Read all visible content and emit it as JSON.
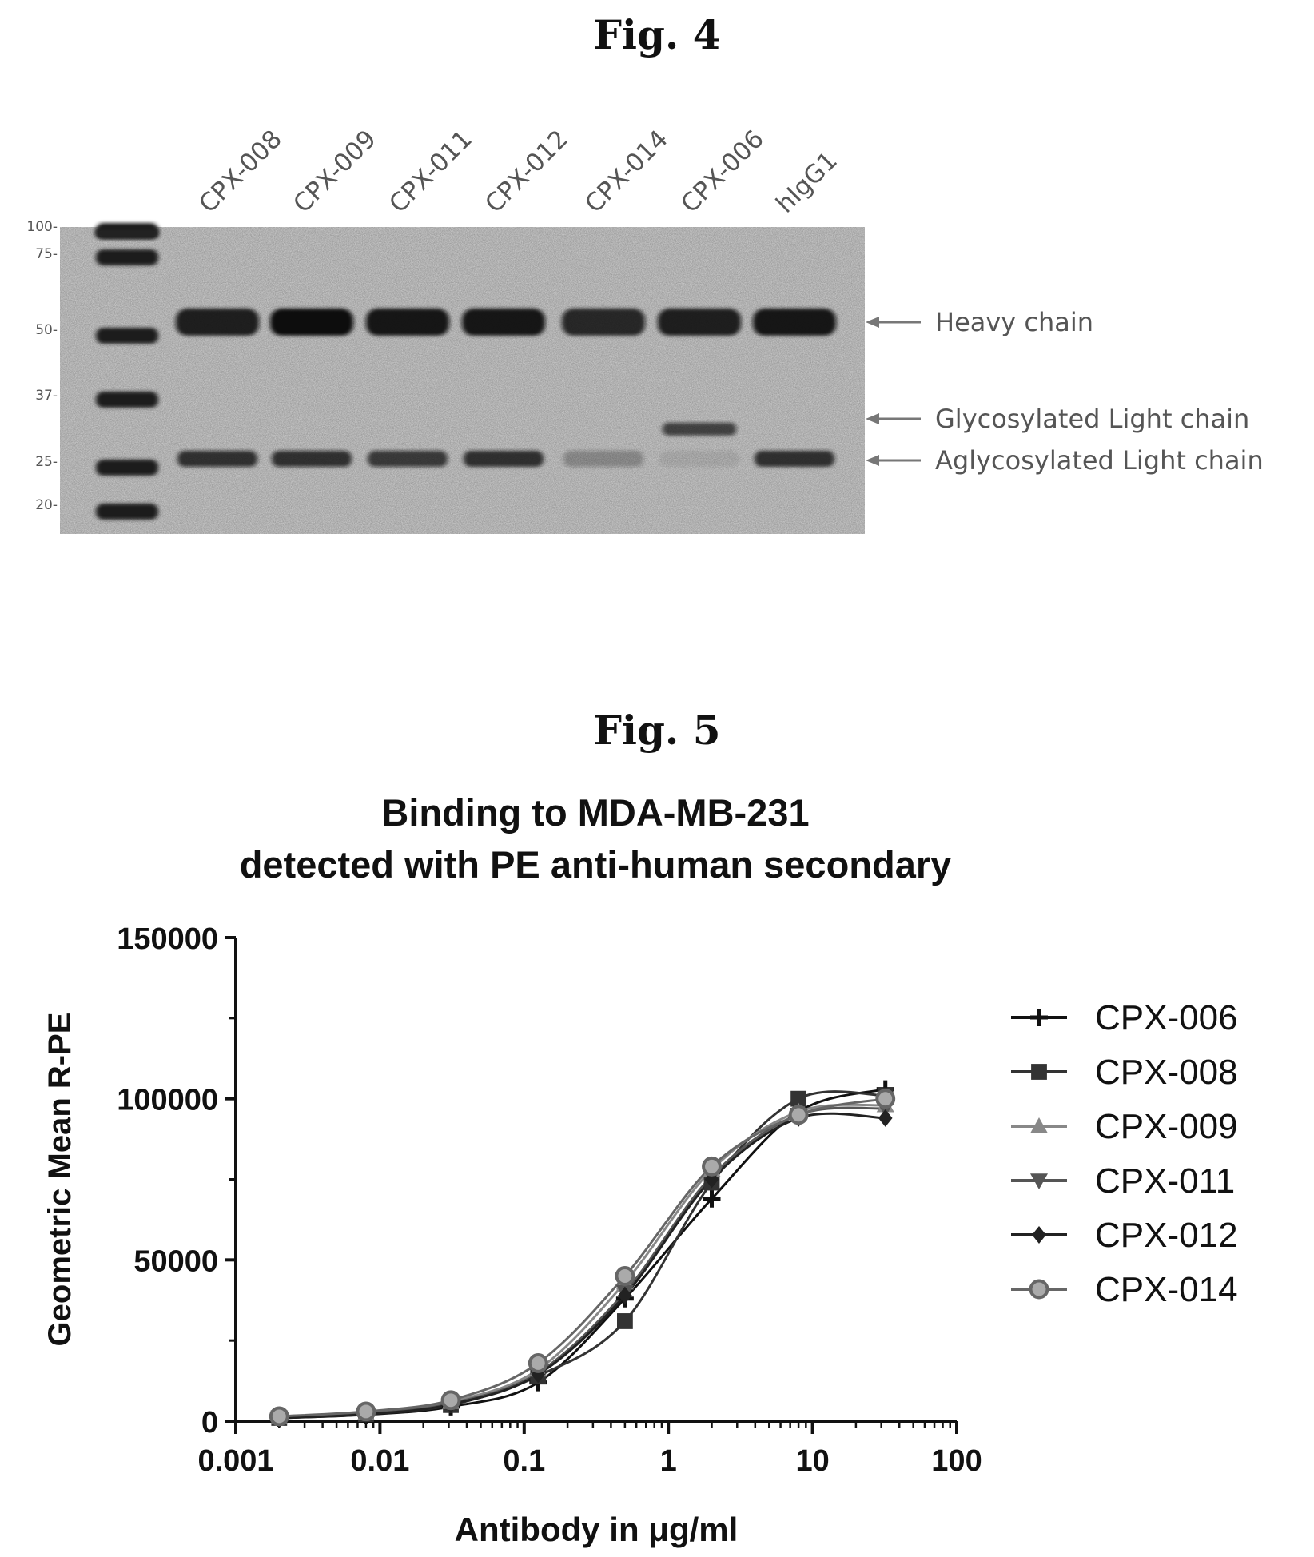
{
  "fig4": {
    "title": "Fig. 4",
    "lanes": [
      "CPX-008",
      "CPX-009",
      "CPX-011",
      "CPX-012",
      "CPX-014",
      "CPX-006",
      "hIgG1"
    ],
    "marker_labels": [
      "100-",
      "75-",
      "50-",
      "37-",
      "25-",
      "20-"
    ],
    "marker_kda": [
      100,
      75,
      50,
      37,
      25,
      20
    ],
    "annotations": [
      "Heavy chain",
      "Glycosylated Light chain",
      "Aglycosylated Light chain"
    ],
    "band_intensity": {
      "heavy": [
        0.9,
        1.0,
        0.95,
        0.95,
        0.85,
        0.9,
        0.95
      ],
      "glyco_light": [
        0,
        0,
        0,
        0,
        0,
        0.7,
        0
      ],
      "aglyco_light": [
        0.8,
        0.8,
        0.75,
        0.85,
        0.3,
        0.08,
        0.85
      ]
    }
  },
  "fig5": {
    "title": "Fig. 5",
    "chart_title_line1": "Binding to MDA-MB-231",
    "chart_title_line2": "detected with PE anti-human secondary"
  },
  "chart_data": {
    "type": "scatter",
    "title": "Binding to MDA-MB-231 detected with PE anti-human secondary",
    "xlabel": "Antibody in μg/ml",
    "ylabel": "Geometric Mean R-PE",
    "xscale": "log",
    "xlim": [
      0.001,
      100
    ],
    "ylim": [
      0,
      150000
    ],
    "x_ticks": [
      "0.001",
      "0.01",
      "0.1",
      "1",
      "10",
      "100"
    ],
    "y_ticks": [
      "0",
      "50000",
      "100000",
      "150000"
    ],
    "legend_position": "right",
    "fitted_curves": true,
    "x": [
      0.002,
      0.008,
      0.031,
      0.125,
      0.5,
      2,
      8,
      32
    ],
    "series": [
      {
        "name": "CPX-006",
        "marker": "plus",
        "color": "#111111",
        "values": [
          1000,
          2000,
          4500,
          12000,
          38000,
          69000,
          96000,
          103000
        ]
      },
      {
        "name": "CPX-008",
        "marker": "square",
        "color": "#333333",
        "values": [
          1000,
          2200,
          5000,
          14000,
          31000,
          74000,
          100000,
          101000
        ]
      },
      {
        "name": "CPX-009",
        "marker": "triangle-up",
        "color": "#888888",
        "values": [
          1200,
          2500,
          6000,
          16000,
          43000,
          78000,
          96000,
          98000
        ]
      },
      {
        "name": "CPX-011",
        "marker": "triangle-down",
        "color": "#555555",
        "values": [
          1100,
          2300,
          5500,
          15000,
          40000,
          76000,
          95000,
          97000
        ]
      },
      {
        "name": "CPX-012",
        "marker": "diamond",
        "color": "#222222",
        "values": [
          1000,
          2100,
          5200,
          14500,
          39000,
          75000,
          94000,
          94000
        ]
      },
      {
        "name": "CPX-014",
        "marker": "circle",
        "color": "#666666",
        "values": [
          1500,
          3000,
          6500,
          18000,
          45000,
          79000,
          95000,
          100000
        ]
      }
    ]
  }
}
